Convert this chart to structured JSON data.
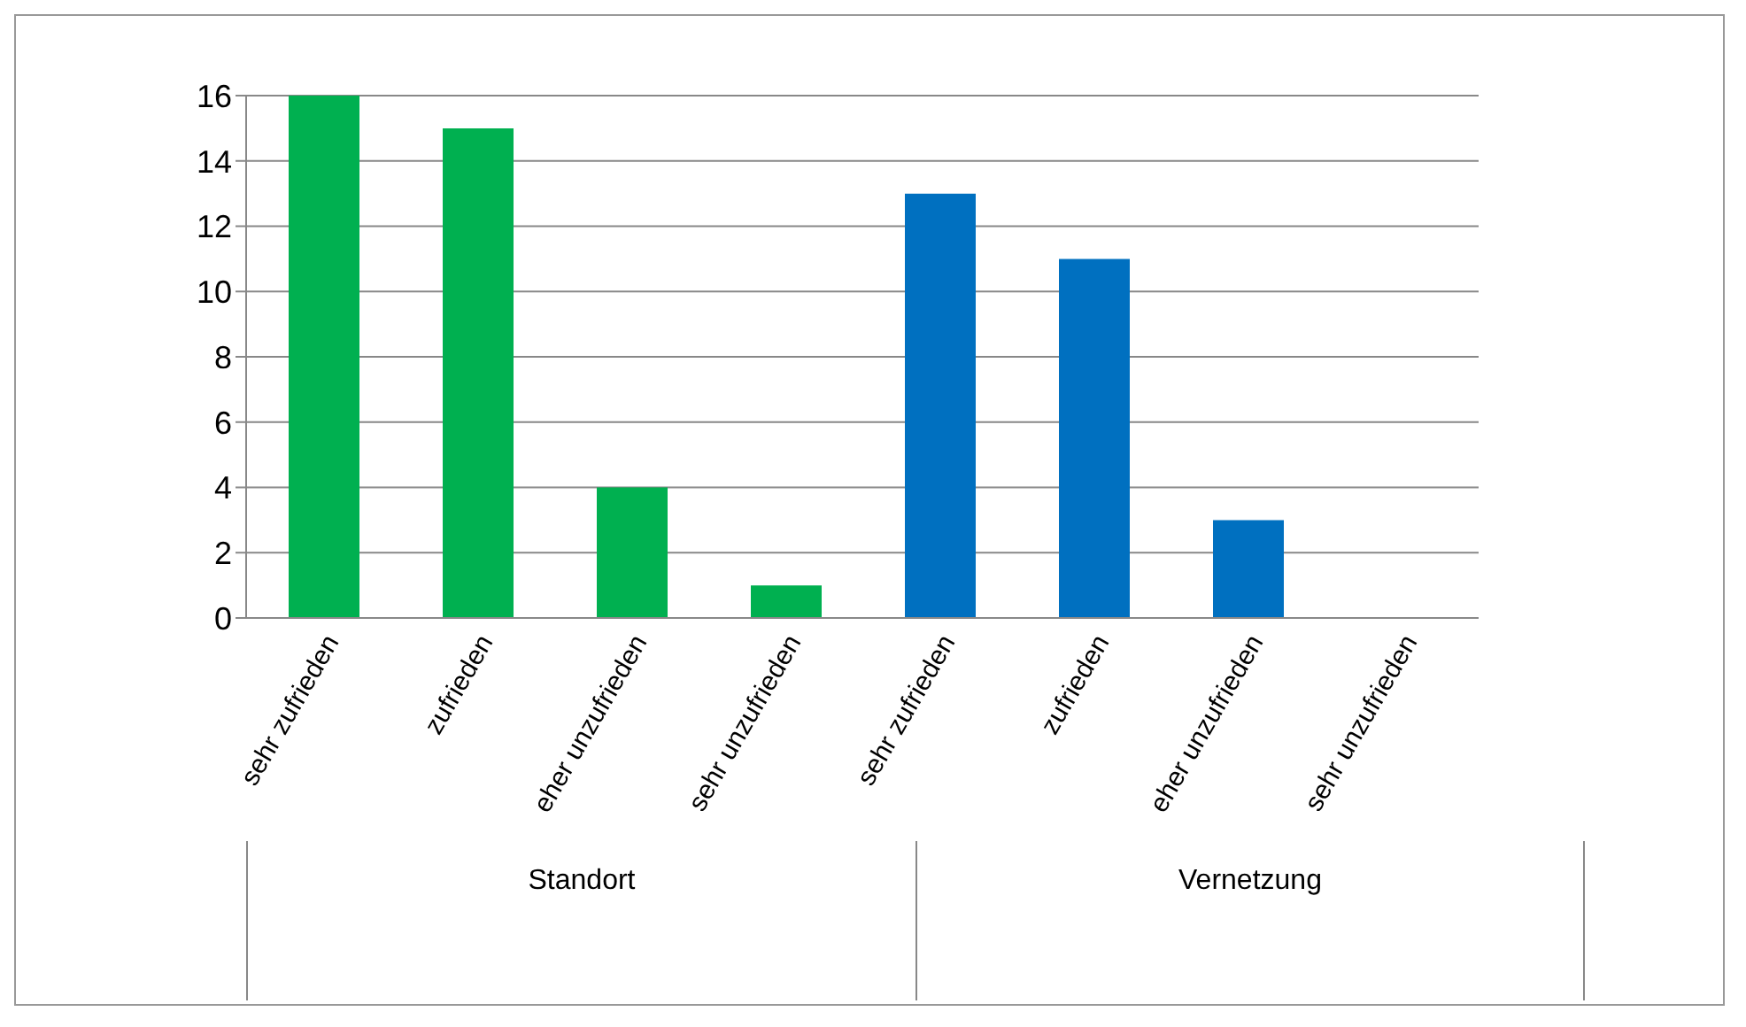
{
  "chart_data": {
    "type": "bar",
    "categories": [
      "sehr zufrieden",
      "zufrieden",
      "eher unzufrieden",
      "sehr unzufrieden",
      "sehr zufrieden",
      "zufrieden",
      "eher unzufrieden",
      "sehr unzufrieden"
    ],
    "values": [
      16,
      15,
      4,
      1,
      13,
      11,
      3,
      0
    ],
    "colors": [
      "#00b050",
      "#00b050",
      "#00b050",
      "#00b050",
      "#0070c0",
      "#0070c0",
      "#0070c0",
      "#0070c0"
    ],
    "ylim": [
      0,
      16
    ],
    "yticks": [
      0,
      2,
      4,
      6,
      8,
      10,
      12,
      14,
      16
    ],
    "grid": "y",
    "annotations": [
      "Standort",
      "Vernetzung"
    ]
  }
}
